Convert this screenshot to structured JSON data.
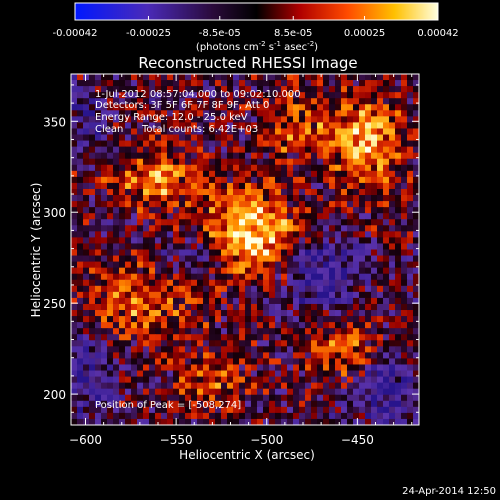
{
  "colorbar": {
    "ticks": [
      "-0.00042",
      "-0.00025",
      "-8.5e-05",
      "8.5e-05",
      "0.00025",
      "0.00042"
    ],
    "tick_values": [
      -0.00042,
      -0.00025,
      -8.5e-05,
      8.5e-05,
      0.00025,
      0.00042
    ],
    "range": [
      -0.00042,
      0.00042
    ],
    "units_main": "(photons cm",
    "units_exp1": "-2",
    "units_mid": " s",
    "units_exp2": "-1",
    "units_end": " asec",
    "units_exp3": "-2",
    "units_close": ")"
  },
  "chart_data": {
    "type": "heatmap",
    "title": "Reconstructed RHESSI Image",
    "xlabel": "Heliocentric X (arcsec)",
    "ylabel": "Heliocentric Y (arcsec)",
    "xlim": [
      -608,
      -416
    ],
    "ylim": [
      183,
      376
    ],
    "xticks": [
      -600,
      -550,
      -500,
      -450
    ],
    "xtick_labels": [
      "−600",
      "−550",
      "−500",
      "−450"
    ],
    "yticks": [
      200,
      250,
      300,
      350
    ],
    "ytick_labels": [
      "200",
      "250",
      "300",
      "350"
    ],
    "colormap": "RHESSI blue-purple-black-red-yellow-white",
    "peak_position": [
      -508,
      274
    ],
    "annotations": {
      "time_range": "1-Jul-2012 08:57:04.000 to 09:02:10.000",
      "detectors": "Detectors: 3F 5F 6F 7F 8F 9F, Att 0",
      "energy": "Energy Range: 12.0 - 25.0 keV",
      "clean": "Clean",
      "total_counts": "Total counts: 6.42E+03",
      "peak": "Position of Peak = [-508,274]"
    },
    "timestamp": "24-Apr-2014 12:50"
  }
}
